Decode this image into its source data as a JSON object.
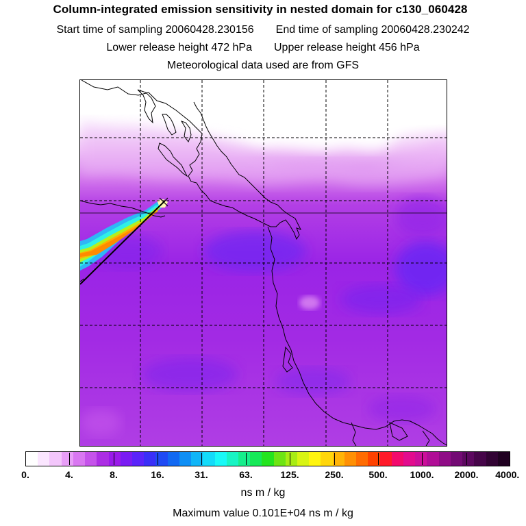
{
  "title": "Column-integrated emission sensitivity in nested domain for c130_060428",
  "start_label": "Start time of sampling 20060428.230156",
  "end_label": "End time of sampling 20060428.230242",
  "lower_label": "Lower release height  472 hPa",
  "upper_label": "Upper release height  456 hPa",
  "met_label": "Meteorological data used are from GFS",
  "colorbar": {
    "units": "ns m / kg",
    "tick_labels": [
      "0.",
      "4.",
      "8.",
      "16.",
      "31.",
      "63.",
      "125.",
      "250.",
      "500.",
      "1000.",
      "2000.",
      "4000."
    ],
    "colors": [
      "#ffffff",
      "#fbe6ff",
      "#f3c6fb",
      "#e89ef7",
      "#d977f1",
      "#c553ea",
      "#ac2ee4",
      "#9a1aea",
      "#7a1cf3",
      "#5a24fa",
      "#3a2ff7",
      "#1f4af4",
      "#1269f2",
      "#0f8ff5",
      "#10b5f7",
      "#14dbf9",
      "#19f9f7",
      "#18f4c4",
      "#16ee8c",
      "#16e957",
      "#24e41e",
      "#6ee414",
      "#a8ec14",
      "#d8f414",
      "#fff50f",
      "#ffd60b",
      "#ffb407",
      "#ff9004",
      "#ff6c02",
      "#ff4200",
      "#ff1a2a",
      "#f20a6c",
      "#e20c8e",
      "#cc0f9a",
      "#b00e96",
      "#8f0c86",
      "#730b74",
      "#5c085f",
      "#460549",
      "#320334",
      "#200121"
    ]
  },
  "max_value_label": "Maximum value  0.101E+04 ns m / kg"
}
